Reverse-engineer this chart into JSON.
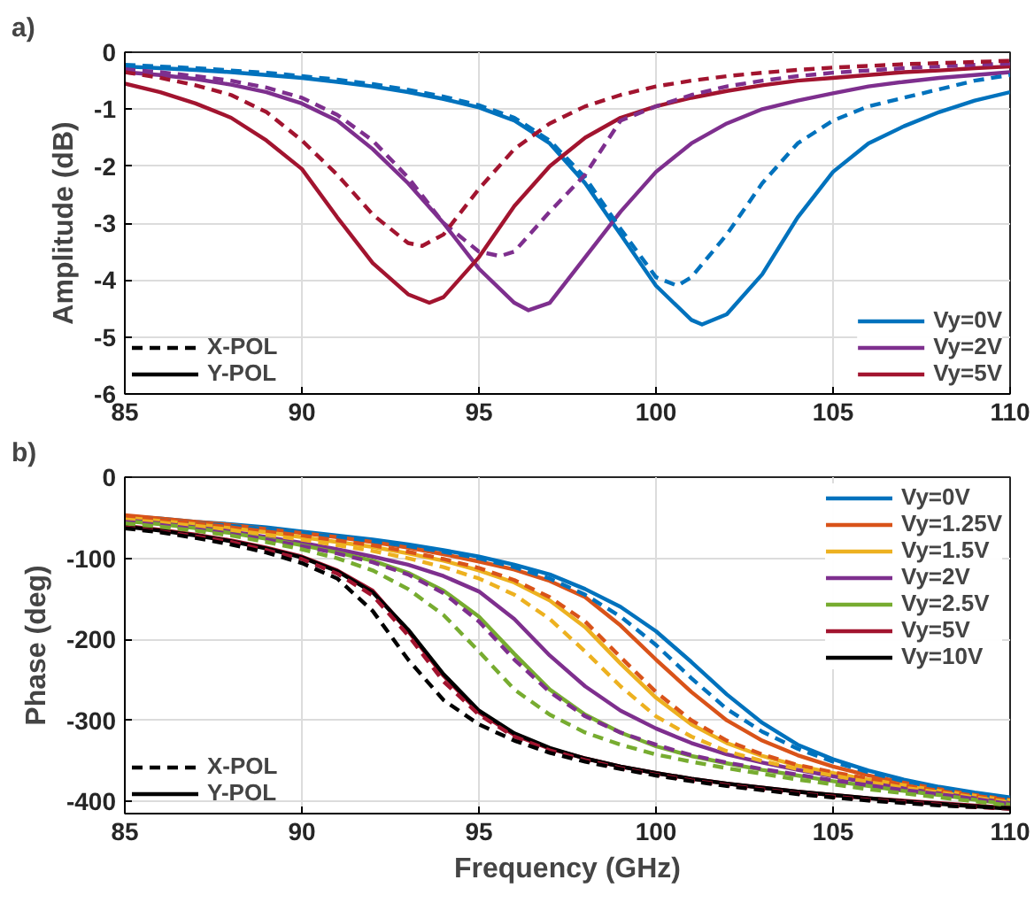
{
  "chart_data": [
    {
      "type": "line",
      "title": "a)",
      "ylabel": "Amplitude (dB)",
      "xlim": [
        85,
        110
      ],
      "xticks": [
        85,
        90,
        95,
        100,
        105,
        110
      ],
      "ylim": [
        -6,
        0
      ],
      "yticks": [
        0,
        -1,
        -2,
        -3,
        -4,
        -5,
        -6
      ],
      "grid": true,
      "legend": "bottom right",
      "line_style": "solid",
      "series": [
        {
          "name": "Vy=0V",
          "color": "#0072bd",
          "x": [
            85,
            86,
            87,
            88,
            89,
            90,
            91,
            92,
            93,
            94,
            95,
            96,
            97,
            98,
            99,
            100,
            101,
            101.3,
            102,
            103,
            104,
            105,
            106,
            107,
            108,
            109,
            110
          ],
          "values": [
            -0.25,
            -0.28,
            -0.31,
            -0.35,
            -0.4,
            -0.45,
            -0.52,
            -0.6,
            -0.7,
            -0.82,
            -0.97,
            -1.2,
            -1.6,
            -2.3,
            -3.2,
            -4.1,
            -4.7,
            -4.78,
            -4.6,
            -3.9,
            -2.9,
            -2.1,
            -1.6,
            -1.3,
            -1.05,
            -0.85,
            -0.7
          ]
        },
        {
          "name": "Vy=2V",
          "color": "#7e2f8e",
          "x": [
            85,
            86,
            87,
            88,
            89,
            90,
            91,
            92,
            93,
            94,
            95,
            96,
            96.4,
            97,
            98,
            99,
            100,
            101,
            102,
            103,
            104,
            105,
            106,
            107,
            108,
            109,
            110
          ],
          "values": [
            -0.35,
            -0.4,
            -0.47,
            -0.57,
            -0.7,
            -0.9,
            -1.2,
            -1.7,
            -2.3,
            -3.0,
            -3.8,
            -4.4,
            -4.53,
            -4.4,
            -3.6,
            -2.8,
            -2.1,
            -1.6,
            -1.25,
            -1.0,
            -0.85,
            -0.72,
            -0.6,
            -0.52,
            -0.45,
            -0.4,
            -0.35
          ]
        },
        {
          "name": "Vy=5V",
          "color": "#a2142f",
          "x": [
            85,
            86,
            87,
            88,
            89,
            90,
            91,
            92,
            93,
            93.6,
            94,
            95,
            96,
            97,
            98,
            99,
            100,
            101,
            102,
            103,
            104,
            105,
            106,
            107,
            108,
            109,
            110
          ],
          "values": [
            -0.55,
            -0.7,
            -0.9,
            -1.15,
            -1.55,
            -2.05,
            -2.9,
            -3.7,
            -4.25,
            -4.4,
            -4.3,
            -3.6,
            -2.7,
            -2.0,
            -1.5,
            -1.15,
            -0.95,
            -0.8,
            -0.68,
            -0.58,
            -0.5,
            -0.45,
            -0.4,
            -0.35,
            -0.32,
            -0.28,
            -0.25
          ]
        },
        {
          "color": "#0072bd",
          "line_style": "dashed",
          "x": [
            85,
            86,
            87,
            88,
            89,
            90,
            91,
            92,
            93,
            94,
            95,
            96,
            97,
            98,
            99,
            100,
            100.6,
            101,
            102,
            103,
            104,
            105,
            106,
            107,
            108,
            109,
            110
          ],
          "values": [
            -0.22,
            -0.25,
            -0.28,
            -0.32,
            -0.36,
            -0.42,
            -0.48,
            -0.56,
            -0.66,
            -0.78,
            -0.93,
            -1.15,
            -1.55,
            -2.2,
            -3.1,
            -3.95,
            -4.1,
            -3.95,
            -3.2,
            -2.3,
            -1.6,
            -1.2,
            -0.95,
            -0.8,
            -0.65,
            -0.5,
            -0.4
          ]
        },
        {
          "color": "#7e2f8e",
          "line_style": "dashed",
          "x": [
            85,
            86,
            87,
            88,
            89,
            90,
            91,
            92,
            93,
            94,
            95,
            95.6,
            96,
            97,
            98,
            99,
            100,
            101,
            102,
            103,
            104,
            105,
            106,
            107,
            108,
            109,
            110
          ],
          "values": [
            -0.3,
            -0.35,
            -0.42,
            -0.5,
            -0.62,
            -0.8,
            -1.1,
            -1.55,
            -2.2,
            -3.0,
            -3.5,
            -3.58,
            -3.5,
            -2.8,
            -2.15,
            -1.2,
            -0.95,
            -0.75,
            -0.6,
            -0.5,
            -0.42,
            -0.36,
            -0.32,
            -0.28,
            -0.25,
            -0.22,
            -0.2
          ]
        },
        {
          "color": "#a2142f",
          "line_style": "dashed",
          "x": [
            85,
            86,
            87,
            88,
            89,
            90,
            91,
            92,
            93,
            93.4,
            94,
            95,
            96,
            97,
            98,
            99,
            100,
            101,
            102,
            103,
            104,
            105,
            106,
            107,
            108,
            109,
            110
          ],
          "values": [
            -0.35,
            -0.45,
            -0.58,
            -0.75,
            -1.05,
            -1.55,
            -2.15,
            -2.85,
            -3.35,
            -3.4,
            -3.2,
            -2.4,
            -1.7,
            -1.25,
            -0.95,
            -0.75,
            -0.6,
            -0.5,
            -0.42,
            -0.36,
            -0.31,
            -0.27,
            -0.24,
            -0.21,
            -0.19,
            -0.17,
            -0.15
          ]
        },
        {
          "name": "X-POL",
          "color": "#000000",
          "line_style": "dashed"
        },
        {
          "name": "Y-POL",
          "color": "#000000",
          "line_style": "solid"
        }
      ]
    },
    {
      "type": "line",
      "title": "b)",
      "xlabel": "Frequency (GHz)",
      "ylabel": "Phase (deg)",
      "xlim": [
        85,
        110
      ],
      "xticks": [
        85,
        90,
        95,
        100,
        105,
        110
      ],
      "ylim": [
        -415,
        0
      ],
      "yticks": [
        0,
        -100,
        -200,
        -300,
        -400
      ],
      "grid": true,
      "legend": "top right",
      "line_style": "solid",
      "series": [
        {
          "name": "Vy=0V",
          "color": "#0072bd",
          "x": [
            85,
            86,
            87,
            88,
            89,
            90,
            91,
            92,
            93,
            94,
            95,
            96,
            97,
            98,
            99,
            100,
            101,
            102,
            103,
            104,
            105,
            106,
            107,
            108,
            109,
            110
          ],
          "values": [
            -48,
            -51,
            -55,
            -58,
            -62,
            -67,
            -72,
            -77,
            -83,
            -90,
            -98,
            -108,
            -120,
            -138,
            -160,
            -190,
            -228,
            -268,
            -303,
            -330,
            -348,
            -362,
            -373,
            -382,
            -389,
            -395
          ]
        },
        {
          "name": "Vy=1.25V",
          "color": "#d95319",
          "x": [
            85,
            86,
            87,
            88,
            89,
            90,
            91,
            92,
            93,
            94,
            95,
            96,
            97,
            98,
            99,
            100,
            101,
            102,
            103,
            104,
            105,
            106,
            107,
            108,
            109,
            110
          ],
          "values": [
            -47,
            -51,
            -55,
            -59,
            -64,
            -69,
            -74,
            -80,
            -87,
            -95,
            -104,
            -114,
            -128,
            -148,
            -183,
            -225,
            -265,
            -300,
            -325,
            -343,
            -357,
            -368,
            -377,
            -385,
            -392,
            -398
          ]
        },
        {
          "name": "Vy=1.5V",
          "color": "#edb120",
          "x": [
            85,
            86,
            87,
            88,
            89,
            90,
            91,
            92,
            93,
            94,
            95,
            96,
            97,
            98,
            99,
            100,
            101,
            102,
            103,
            104,
            105,
            106,
            107,
            108,
            109,
            110
          ],
          "values": [
            -50,
            -54,
            -58,
            -63,
            -68,
            -74,
            -80,
            -86,
            -94,
            -103,
            -115,
            -130,
            -152,
            -185,
            -230,
            -272,
            -305,
            -328,
            -344,
            -356,
            -365,
            -373,
            -380,
            -387,
            -393,
            -399
          ]
        },
        {
          "name": "Vy=2V",
          "color": "#7e2f8e",
          "x": [
            85,
            86,
            87,
            88,
            89,
            90,
            91,
            92,
            93,
            94,
            95,
            96,
            97,
            98,
            99,
            100,
            101,
            102,
            103,
            104,
            105,
            106,
            107,
            108,
            109,
            110
          ],
          "values": [
            -53,
            -57,
            -62,
            -67,
            -74,
            -81,
            -89,
            -98,
            -108,
            -122,
            -141,
            -175,
            -220,
            -258,
            -288,
            -310,
            -328,
            -342,
            -352,
            -361,
            -369,
            -377,
            -384,
            -390,
            -396,
            -402
          ]
        },
        {
          "name": "Vy=2.5V",
          "color": "#77ac30",
          "x": [
            85,
            86,
            87,
            88,
            89,
            90,
            91,
            92,
            93,
            94,
            95,
            96,
            97,
            98,
            99,
            100,
            101,
            102,
            103,
            104,
            105,
            106,
            107,
            108,
            109,
            110
          ],
          "values": [
            -54,
            -58,
            -63,
            -69,
            -76,
            -84,
            -93,
            -103,
            -118,
            -140,
            -172,
            -218,
            -262,
            -293,
            -315,
            -332,
            -344,
            -353,
            -361,
            -368,
            -375,
            -381,
            -387,
            -392,
            -398,
            -404
          ]
        },
        {
          "name": "Vy=5V",
          "color": "#a2142f",
          "x": [
            85,
            86,
            87,
            88,
            89,
            90,
            91,
            92,
            93,
            94,
            95,
            96,
            97,
            98,
            99,
            100,
            101,
            102,
            103,
            104,
            105,
            106,
            107,
            108,
            109,
            110
          ],
          "values": [
            -60,
            -65,
            -71,
            -78,
            -87,
            -98,
            -115,
            -140,
            -190,
            -245,
            -290,
            -318,
            -335,
            -347,
            -357,
            -365,
            -372,
            -378,
            -383,
            -388,
            -392,
            -396,
            -399,
            -402,
            -405,
            -408
          ]
        },
        {
          "name": "Vy=10V",
          "color": "#000000",
          "x": [
            85,
            86,
            87,
            88,
            89,
            90,
            91,
            92,
            93,
            94,
            95,
            96,
            97,
            98,
            99,
            100,
            101,
            102,
            103,
            104,
            105,
            106,
            107,
            108,
            109,
            110
          ],
          "values": [
            -61,
            -66,
            -72,
            -79,
            -88,
            -99,
            -116,
            -142,
            -188,
            -243,
            -288,
            -316,
            -334,
            -347,
            -357,
            -365,
            -372,
            -378,
            -383,
            -388,
            -392,
            -396,
            -400,
            -403,
            -406,
            -409
          ]
        },
        {
          "color": "#0072bd",
          "line_style": "dashed",
          "x": [
            85,
            86,
            87,
            88,
            89,
            90,
            91,
            92,
            93,
            94,
            95,
            96,
            97,
            98,
            99,
            100,
            101,
            102,
            103,
            104,
            105,
            106,
            107,
            108,
            109,
            110
          ],
          "values": [
            -50,
            -53,
            -57,
            -60,
            -64,
            -69,
            -74,
            -79,
            -85,
            -92,
            -100,
            -111,
            -125,
            -145,
            -172,
            -207,
            -248,
            -286,
            -314,
            -335,
            -351,
            -364,
            -375,
            -384,
            -391,
            -397
          ]
        },
        {
          "color": "#d95319",
          "line_style": "dashed",
          "x": [
            85,
            86,
            87,
            88,
            89,
            90,
            91,
            92,
            93,
            94,
            95,
            96,
            97,
            98,
            99,
            100,
            101,
            102,
            103,
            104,
            105,
            106,
            107,
            108,
            109,
            110
          ],
          "values": [
            -49,
            -53,
            -57,
            -62,
            -67,
            -72,
            -78,
            -84,
            -92,
            -101,
            -112,
            -127,
            -148,
            -178,
            -222,
            -265,
            -300,
            -325,
            -342,
            -355,
            -364,
            -372,
            -380,
            -387,
            -393,
            -399
          ]
        },
        {
          "color": "#edb120",
          "line_style": "dashed",
          "x": [
            85,
            86,
            87,
            88,
            89,
            90,
            91,
            92,
            93,
            94,
            95,
            96,
            97,
            98,
            99,
            100,
            101,
            102,
            103,
            104,
            105,
            106,
            107,
            108,
            109,
            110
          ],
          "values": [
            -52,
            -56,
            -60,
            -65,
            -71,
            -77,
            -84,
            -91,
            -100,
            -111,
            -125,
            -145,
            -175,
            -215,
            -258,
            -295,
            -320,
            -338,
            -350,
            -360,
            -368,
            -376,
            -383,
            -389,
            -395,
            -401
          ]
        },
        {
          "color": "#7e2f8e",
          "line_style": "dashed",
          "x": [
            85,
            86,
            87,
            88,
            89,
            90,
            91,
            92,
            93,
            94,
            95,
            96,
            97,
            98,
            99,
            100,
            101,
            102,
            103,
            104,
            105,
            106,
            107,
            108,
            109,
            110
          ],
          "values": [
            -55,
            -59,
            -64,
            -70,
            -77,
            -85,
            -94,
            -105,
            -120,
            -143,
            -178,
            -225,
            -265,
            -295,
            -315,
            -330,
            -343,
            -352,
            -360,
            -367,
            -374,
            -380,
            -386,
            -391,
            -397,
            -403
          ]
        },
        {
          "color": "#77ac30",
          "line_style": "dashed",
          "x": [
            85,
            86,
            87,
            88,
            89,
            90,
            91,
            92,
            93,
            94,
            95,
            96,
            97,
            98,
            99,
            100,
            101,
            102,
            103,
            104,
            105,
            106,
            107,
            108,
            109,
            110
          ],
          "values": [
            -57,
            -61,
            -66,
            -72,
            -80,
            -89,
            -100,
            -115,
            -138,
            -170,
            -215,
            -262,
            -293,
            -315,
            -330,
            -342,
            -351,
            -359,
            -366,
            -373,
            -379,
            -385,
            -390,
            -395,
            -400,
            -405
          ]
        },
        {
          "color": "#a2142f",
          "line_style": "dashed",
          "x": [
            85,
            86,
            87,
            88,
            89,
            90,
            91,
            92,
            93,
            94,
            95,
            96,
            97,
            98,
            99,
            100,
            101,
            102,
            103,
            104,
            105,
            106,
            107,
            108,
            109,
            110
          ],
          "values": [
            -62,
            -67,
            -73,
            -80,
            -90,
            -101,
            -119,
            -146,
            -195,
            -252,
            -293,
            -320,
            -337,
            -349,
            -359,
            -367,
            -374,
            -380,
            -385,
            -390,
            -394,
            -398,
            -401,
            -404,
            -407,
            -409
          ]
        },
        {
          "color": "#000000",
          "line_style": "dashed",
          "x": [
            85,
            86,
            87,
            88,
            89,
            90,
            91,
            92,
            93,
            94,
            95,
            96,
            97,
            98,
            99,
            100,
            101,
            102,
            103,
            104,
            105,
            106,
            107,
            108,
            109,
            110
          ],
          "values": [
            -63,
            -68,
            -75,
            -83,
            -93,
            -106,
            -125,
            -165,
            -225,
            -275,
            -305,
            -325,
            -340,
            -351,
            -360,
            -368,
            -375,
            -381,
            -386,
            -391,
            -395,
            -399,
            -402,
            -405,
            -407,
            -408
          ]
        },
        {
          "name": "X-POL",
          "color": "#000000",
          "line_style": "dashed"
        },
        {
          "name": "Y-POL",
          "color": "#000000",
          "line_style": "solid"
        }
      ]
    }
  ]
}
